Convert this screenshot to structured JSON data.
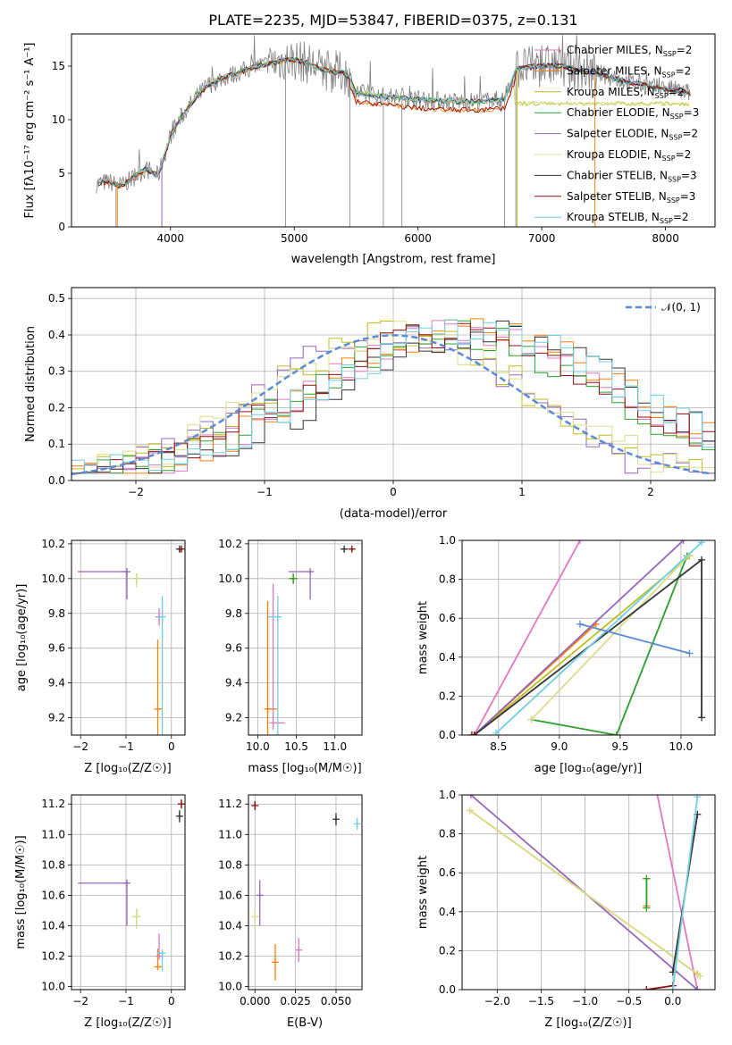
{
  "figure_title": "PLATE=2235, MJD=53847, FIBERID=0375, z=0.131",
  "colors": {
    "Chabrier MILES": "#e377c2",
    "Salpeter MILES": "#ff7f0e",
    "Kroupa MILES": "#bcbd22",
    "Chabrier ELODIE": "#2ca02c",
    "Salpeter ELODIE": "#9467bd",
    "Kroupa ELODIE": "#dbdb8d",
    "Chabrier STELIB": "#333333",
    "Salpeter STELIB": "#8c1010",
    "Kroupa STELIB": "#6fd0e0",
    "data": "#808080",
    "normal": "#5b8ad8"
  },
  "chart_data": [
    {
      "id": "spectrum",
      "type": "line",
      "xlabel": "wavelength [Angstrom, rest frame]",
      "ylabel": "Flux [fλ10⁻¹⁷ erg cm⁻² s⁻¹ A⁻¹]",
      "xlim": [
        3200,
        8400
      ],
      "ylim": [
        0,
        18
      ],
      "xticks": [
        4000,
        5000,
        6000,
        7000,
        8000
      ],
      "yticks": [
        0,
        5,
        10,
        15
      ],
      "grid": false,
      "legend_position": "top-right",
      "series": [
        {
          "name": "Chabrier MILES, N_SSP=2",
          "legend": "Chabrier MILES, NSSP=2"
        },
        {
          "name": "Salpeter MILES, N_SSP=2",
          "legend": "Salpeter MILES, NSSP=2"
        },
        {
          "name": "Kroupa MILES, N_SSP=2",
          "legend": "Kroupa MILES, NSSP=2"
        },
        {
          "name": "Chabrier ELODIE, N_SSP=3",
          "legend": "Chabrier ELODIE, NSSP=3"
        },
        {
          "name": "Salpeter ELODIE, N_SSP=2",
          "legend": "Salpeter ELODIE, NSSP=2"
        },
        {
          "name": "Kroupa ELODIE, N_SSP=2",
          "legend": "Kroupa ELODIE, NSSP=2"
        },
        {
          "name": "Chabrier STELIB, N_SSP=3",
          "legend": "Chabrier STELIB, NSSP=3"
        },
        {
          "name": "Salpeter STELIB, N_SSP=3",
          "legend": "Salpeter STELIB, NSSP=3"
        },
        {
          "name": "Kroupa STELIB, N_SSP=2",
          "legend": "Kroupa STELIB, NSSP=2"
        }
      ],
      "data_envelope": {
        "x": [
          3400,
          3500,
          3600,
          3700,
          3800,
          3900,
          4000,
          4100,
          4200,
          4300,
          4400,
          4500,
          4600,
          4700,
          4800,
          4900,
          5000,
          5100,
          5200,
          5300,
          5400,
          5450,
          5500,
          5700,
          5900,
          6100,
          6300,
          6500,
          6700,
          6800,
          6900,
          7000,
          7100,
          7200,
          7300,
          7400,
          7500,
          7600,
          7700,
          7800,
          7900,
          8000,
          8100,
          8200
        ],
        "y": [
          4.0,
          4.2,
          3.8,
          4.6,
          5.4,
          4.8,
          8.5,
          10.5,
          12.0,
          13.2,
          13.8,
          14.2,
          14.6,
          15.0,
          15.2,
          15.5,
          15.6,
          15.3,
          14.8,
          14.5,
          14.4,
          13.9,
          12.5,
          12.2,
          12.0,
          11.8,
          11.7,
          11.7,
          11.9,
          14.8,
          14.9,
          15.0,
          15.1,
          14.9,
          14.6,
          14.4,
          14.2,
          13.8,
          13.5,
          13.3,
          13.0,
          12.9,
          12.7,
          12.5
        ]
      }
    },
    {
      "id": "residual_hist",
      "type": "histogram",
      "xlabel": "(data-model)/error",
      "ylabel": "Normed distribution",
      "xlim": [
        -2.5,
        2.5
      ],
      "ylim": [
        0,
        0.53
      ],
      "xticks": [
        -2,
        -1,
        0,
        1,
        2
      ],
      "yticks": [
        0.0,
        0.1,
        0.2,
        0.3,
        0.4,
        0.5
      ],
      "grid": true,
      "legend_position": "top-right",
      "normal_label": "𝒩(0, 1)",
      "normal_mu": 0,
      "normal_sigma": 1,
      "bin_width": 0.1
    },
    {
      "id": "age_vs_Z",
      "type": "errorbar",
      "xlabel": "Z [log₁₀(Z/Z☉)]",
      "ylabel": "age  [log₁₀(age/yr)]",
      "xlim": [
        -2.2,
        0.3
      ],
      "ylim": [
        9.1,
        10.22
      ],
      "xticks": [
        -2,
        -1,
        0
      ],
      "yticks": [
        9.2,
        9.4,
        9.6,
        9.8,
        10.0,
        10.2
      ],
      "grid": true,
      "points": [
        {
          "series": "Salpeter ELODIE",
          "x": -0.98,
          "y": 10.04,
          "xerr": [
            1.08,
            0
          ],
          "yerr": [
            0.16,
            0
          ]
        },
        {
          "series": "Kroupa MILES",
          "x": -0.77,
          "y": 10.0,
          "xerr": [
            0.08,
            0.08
          ],
          "yerr": [
            0.03,
            0.03
          ]
        },
        {
          "series": "Chabrier ELODIE",
          "x": -0.77,
          "y": 10.0,
          "xerr": [
            0.05,
            0.05
          ],
          "yerr": [
            0.03,
            0.03
          ]
        },
        {
          "series": "Kroupa ELODIE",
          "x": -0.77,
          "y": 10.0,
          "xerr": [
            0.1,
            0.05
          ],
          "yerr": [
            0.05,
            0.03
          ]
        },
        {
          "series": "Salpeter MILES",
          "x": -0.3,
          "y": 9.25,
          "xerr": [
            0,
            0.1
          ],
          "yerr": [
            0.15,
            0.4
          ]
        },
        {
          "series": "Chabrier MILES",
          "x": -0.27,
          "y": 9.78,
          "xerr": [
            0,
            0
          ],
          "yerr": [
            0.05,
            0.05
          ]
        },
        {
          "series": "Kroupa STELIB",
          "x": -0.2,
          "y": 9.78,
          "xerr": [
            0.12,
            0.0
          ],
          "yerr": [
            0.68,
            0.12
          ]
        },
        {
          "series": "Chabrier STELIB",
          "x": 0.18,
          "y": 10.17,
          "xerr": [
            0.05,
            0.05
          ],
          "yerr": [
            0.02,
            0.01
          ]
        },
        {
          "series": "Salpeter STELIB",
          "x": 0.22,
          "y": 10.17,
          "xerr": [
            0.03,
            0.03
          ],
          "yerr": [
            0.01,
            0.01
          ]
        }
      ]
    },
    {
      "id": "age_vs_mass",
      "type": "errorbar",
      "xlabel": "mass [log₁₀(M/M☉)]",
      "ylabel": "",
      "xlim": [
        9.88,
        11.35
      ],
      "ylim": [
        9.1,
        10.22
      ],
      "xticks": [
        10.0,
        10.5,
        11.0
      ],
      "yticks": [
        9.2,
        9.4,
        9.6,
        9.8,
        10.0,
        10.2
      ],
      "grid": true,
      "points": [
        {
          "series": "Salpeter ELODIE",
          "x": 10.68,
          "y": 10.04,
          "xerr": [
            0.28,
            0
          ],
          "yerr": [
            0.16,
            0
          ]
        },
        {
          "series": "Kroupa MILES",
          "x": 10.46,
          "y": 10.0,
          "xerr": [
            0.06,
            0.05
          ],
          "yerr": [
            0.03,
            0.03
          ]
        },
        {
          "series": "Chabrier ELODIE",
          "x": 10.46,
          "y": 10.0,
          "xerr": [
            0.05,
            0.05
          ],
          "yerr": [
            0.03,
            0.03
          ]
        },
        {
          "series": "Salpeter MILES",
          "x": 10.13,
          "y": 9.25,
          "xerr": [
            0.02,
            0.12
          ],
          "yerr": [
            0.15,
            0.62
          ]
        },
        {
          "series": "Chabrier MILES",
          "x": 10.2,
          "y": 9.17,
          "xerr": [
            0,
            0.15
          ],
          "yerr": [
            0.04,
            0.8
          ]
        },
        {
          "series": "Kroupa STELIB",
          "x": 10.26,
          "y": 9.78,
          "xerr": [
            0.12,
            0.0
          ],
          "yerr": [
            0.68,
            0.12
          ]
        },
        {
          "series": "Chabrier STELIB",
          "x": 11.12,
          "y": 10.17,
          "xerr": [
            0.04,
            0.04
          ],
          "yerr": [
            0.02,
            0.01
          ]
        },
        {
          "series": "Salpeter STELIB",
          "x": 11.22,
          "y": 10.17,
          "xerr": [
            0.03,
            0.03
          ],
          "yerr": [
            0.01,
            0.01
          ]
        }
      ]
    },
    {
      "id": "mass_weight_vs_age",
      "type": "line",
      "xlabel": "age  [log₁₀(age/yr)]",
      "ylabel": "mass weight",
      "xlim": [
        8.2,
        10.28
      ],
      "ylim": [
        0,
        1.0
      ],
      "xticks": [
        8.5,
        9.0,
        9.5,
        10.0
      ],
      "yticks": [
        0.0,
        0.2,
        0.4,
        0.6,
        0.8,
        1.0
      ],
      "grid": true,
      "series": [
        {
          "name": "Chabrier MILES",
          "x": [
            8.3,
            9.17
          ],
          "y": [
            0.0,
            1.0
          ]
        },
        {
          "name": "Salpeter MILES",
          "x": [
            8.3,
            9.3
          ],
          "y": [
            0.0,
            0.57
          ]
        },
        {
          "name": "Kroupa MILES",
          "x": [
            8.3,
            10.07
          ],
          "y": [
            0.0,
            0.92
          ]
        },
        {
          "name": "Chabrier ELODIE",
          "x": [
            8.77,
            9.47,
            10.05
          ],
          "y": [
            0.08,
            0.0,
            0.92
          ]
        },
        {
          "name": "Salpeter ELODIE",
          "x": [
            8.3,
            10.02
          ],
          "y": [
            0.0,
            1.0
          ]
        },
        {
          "name": "Kroupa ELODIE",
          "x": [
            8.77,
            10.06
          ],
          "y": [
            0.08,
            0.92
          ]
        },
        {
          "name": "Chabrier STELIB",
          "x": [
            8.3,
            10.17,
            10.17
          ],
          "y": [
            0.0,
            0.9,
            0.09
          ]
        },
        {
          "name": "Salpeter STELIB",
          "x": [
            8.28,
            8.3
          ],
          "y": [
            0.0,
            0.0
          ]
        },
        {
          "name": "Kroupa STELIB",
          "x": [
            8.48,
            10.17
          ],
          "y": [
            0.01,
            0.99
          ]
        },
        {
          "name": "fit",
          "x": [
            9.17,
            10.07
          ],
          "y": [
            0.57,
            0.42
          ]
        }
      ]
    },
    {
      "id": "mass_vs_Z",
      "type": "errorbar",
      "xlabel": "Z [log₁₀(Z/Z☉)]",
      "ylabel": "mass [log₁₀(M/M☉)]",
      "xlim": [
        -2.2,
        0.3
      ],
      "ylim": [
        9.98,
        11.26
      ],
      "xticks": [
        -2,
        -1,
        0
      ],
      "yticks": [
        10.0,
        10.2,
        10.4,
        10.6,
        10.8,
        11.0,
        11.2
      ],
      "grid": true,
      "points": [
        {
          "series": "Salpeter ELODIE",
          "x": -0.98,
          "y": 10.68,
          "xerr": [
            1.08,
            0
          ],
          "yerr": [
            0.28,
            0
          ]
        },
        {
          "series": "Kroupa MILES",
          "x": -0.77,
          "y": 10.46,
          "xerr": [
            0.08,
            0.08
          ],
          "yerr": [
            0.06,
            0.05
          ]
        },
        {
          "series": "Chabrier ELODIE",
          "x": -0.77,
          "y": 10.46,
          "xerr": [
            0.05,
            0.05
          ],
          "yerr": [
            0.05,
            0.05
          ]
        },
        {
          "series": "Kroupa ELODIE",
          "x": -0.77,
          "y": 10.46,
          "xerr": [
            0.1,
            0.05
          ],
          "yerr": [
            0.08,
            0.05
          ]
        },
        {
          "series": "Salpeter MILES",
          "x": -0.3,
          "y": 10.13,
          "xerr": [
            0,
            0.1
          ],
          "yerr": [
            0.02,
            0.12
          ]
        },
        {
          "series": "Chabrier MILES",
          "x": -0.27,
          "y": 10.2,
          "xerr": [
            0,
            0
          ],
          "yerr": [
            0,
            0.15
          ]
        },
        {
          "series": "Kroupa STELIB",
          "x": -0.2,
          "y": 10.22,
          "xerr": [
            0.12,
            0.0
          ],
          "yerr": [
            0.12,
            0.0
          ]
        },
        {
          "series": "Chabrier STELIB",
          "x": 0.18,
          "y": 11.12,
          "xerr": [
            0.05,
            0.05
          ],
          "yerr": [
            0.04,
            0.04
          ]
        },
        {
          "series": "Salpeter STELIB",
          "x": 0.22,
          "y": 11.2,
          "xerr": [
            0.03,
            0.03
          ],
          "yerr": [
            0.03,
            0.03
          ]
        }
      ]
    },
    {
      "id": "mass_vs_ebv",
      "type": "errorbar",
      "xlabel": "E(B-V)",
      "ylabel": "",
      "xlim": [
        -0.004,
        0.066
      ],
      "ylim": [
        9.98,
        11.26
      ],
      "xticks": [
        0.0,
        0.025,
        0.05
      ],
      "xtick_labels": [
        "0.000",
        "0.025",
        "0.050"
      ],
      "yticks": [
        10.0,
        10.2,
        10.4,
        10.6,
        10.8,
        11.0,
        11.2
      ],
      "grid": true,
      "points": [
        {
          "series": "Salpeter ELODIE",
          "x": 0.003,
          "y": 10.6,
          "xerr": [
            0,
            0
          ],
          "yerr": [
            0.2,
            0.1
          ]
        },
        {
          "series": "Kroupa ELODIE",
          "x": 0.0,
          "y": 10.46,
          "xerr": [
            0,
            0
          ],
          "yerr": [
            0.08,
            0.05
          ]
        },
        {
          "series": "Salpeter MILES",
          "x": 0.0125,
          "y": 10.16,
          "xerr": [
            0,
            0
          ],
          "yerr": [
            0.12,
            0.12
          ]
        },
        {
          "series": "Chabrier MILES",
          "x": 0.027,
          "y": 10.24,
          "xerr": [
            0,
            0
          ],
          "yerr": [
            0.08,
            0.08
          ]
        },
        {
          "series": "Chabrier STELIB",
          "x": 0.05,
          "y": 11.1,
          "xerr": [
            0,
            0
          ],
          "yerr": [
            0.04,
            0.04
          ]
        },
        {
          "series": "Salpeter STELIB",
          "x": 0.0,
          "y": 11.19,
          "xerr": [
            0,
            0
          ],
          "yerr": [
            0.03,
            0.03
          ]
        },
        {
          "series": "Kroupa STELIB",
          "x": 0.063,
          "y": 11.07,
          "xerr": [
            0,
            0
          ],
          "yerr": [
            0.04,
            0.04
          ]
        }
      ]
    },
    {
      "id": "mass_weight_vs_Z",
      "type": "line",
      "xlabel": "Z [log₁₀(Z/Z☉)]",
      "ylabel": "mass weight",
      "xlim": [
        -2.4,
        0.48
      ],
      "ylim": [
        0,
        1.0
      ],
      "xticks": [
        -2.0,
        -1.5,
        -1.0,
        -0.5,
        0.0
      ],
      "xtick_labels": [
        "−2.0",
        "−1.5",
        "−1.0",
        "−0.5",
        "0.0"
      ],
      "yticks": [
        0.0,
        0.2,
        0.4,
        0.6,
        0.8,
        1.0
      ],
      "grid": true,
      "series": [
        {
          "name": "Chabrier MILES",
          "x": [
            -0.2,
            0.28
          ],
          "y": [
            1.05,
            0.0
          ]
        },
        {
          "name": "Salpeter MILES",
          "x": [
            -0.3,
            -0.3
          ],
          "y": [
            0.43,
            0.57
          ]
        },
        {
          "name": "Kroupa MILES",
          "x": [
            -2.31,
            0.28
          ],
          "y": [
            0.92,
            0.08
          ]
        },
        {
          "name": "Chabrier ELODIE",
          "x": [
            -0.3,
            -0.3
          ],
          "y": [
            0.42,
            0.57
          ]
        },
        {
          "name": "Salpeter ELODIE",
          "x": [
            -2.3,
            0.28
          ],
          "y": [
            1.0,
            0.0
          ]
        },
        {
          "name": "Kroupa ELODIE",
          "x": [
            -2.31,
            0.31
          ],
          "y": [
            0.92,
            0.07
          ]
        },
        {
          "name": "Chabrier STELIB",
          "x": [
            0.0,
            0.28
          ],
          "y": [
            0.09,
            0.9
          ]
        },
        {
          "name": "Salpeter STELIB",
          "x": [
            -0.3,
            0.0
          ],
          "y": [
            0.0,
            0.02
          ]
        },
        {
          "name": "Kroupa STELIB",
          "x": [
            0.0,
            0.28
          ],
          "y": [
            0.0,
            0.99
          ]
        }
      ]
    }
  ]
}
